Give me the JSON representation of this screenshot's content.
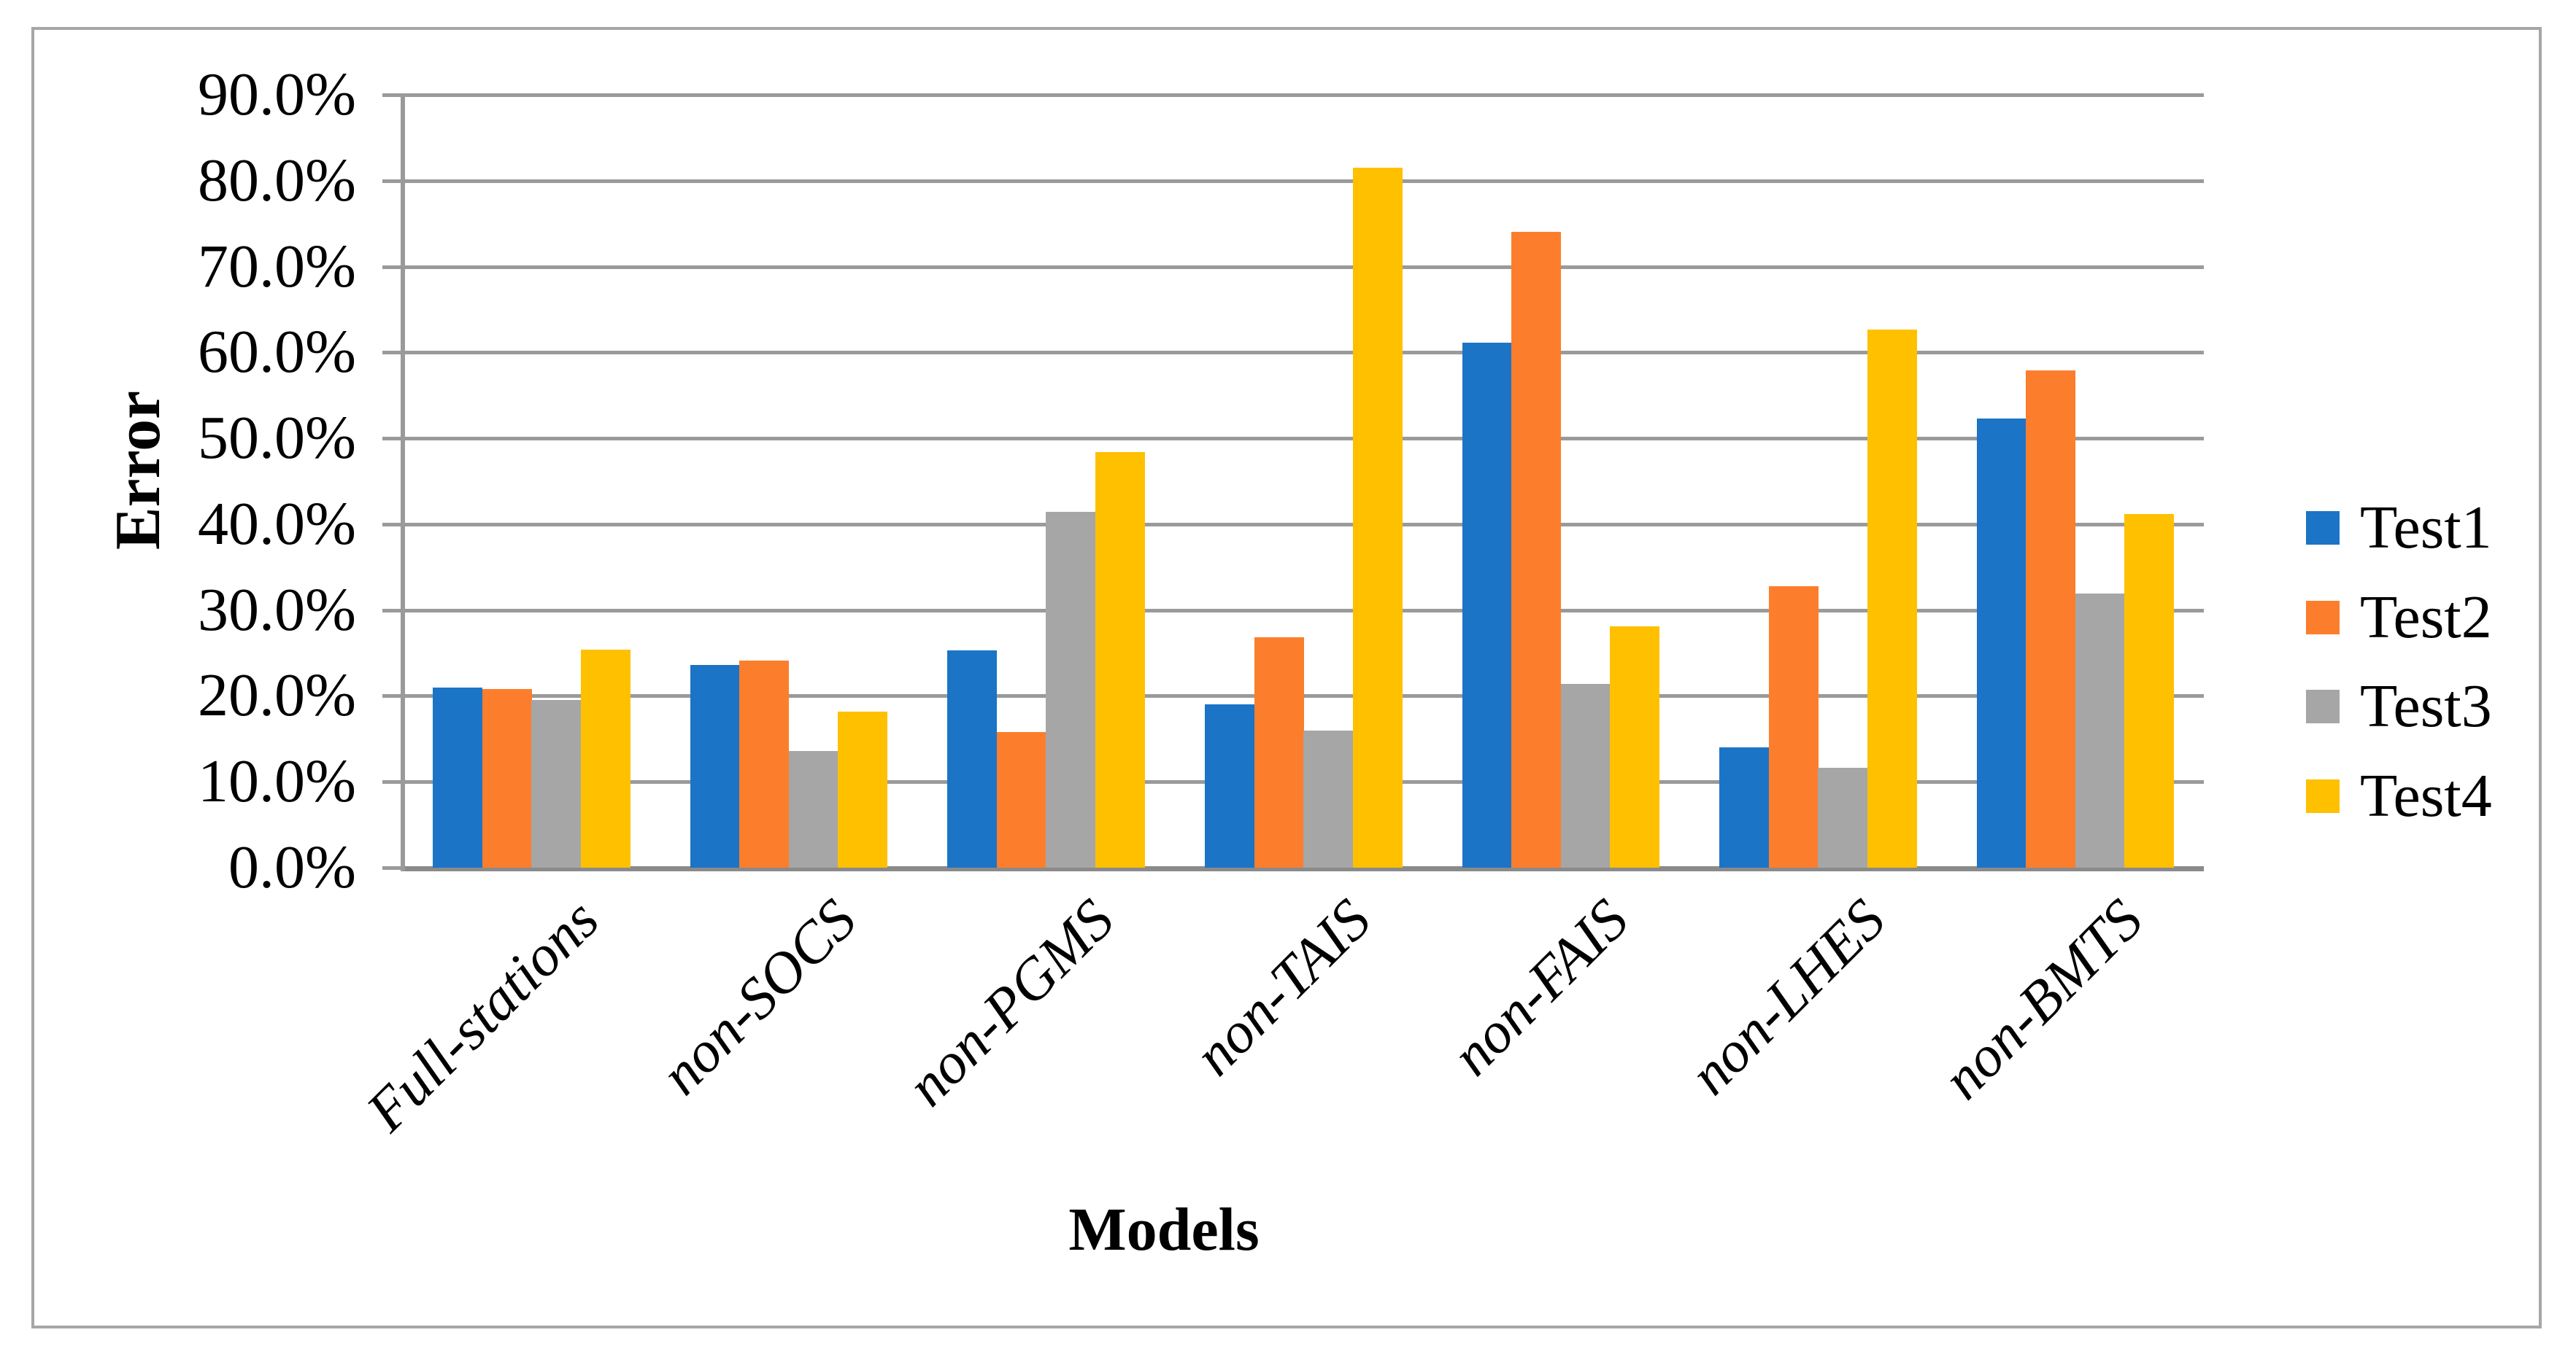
{
  "chart_data": {
    "type": "bar",
    "title": "",
    "xlabel": "Models",
    "ylabel": "Error",
    "ylim": [
      0,
      90
    ],
    "grid": "horizontal",
    "legend_position": "right",
    "y_tick_labels": [
      "90.0%",
      "80.0%",
      "70.0%",
      "60.0%",
      "50.0%",
      "40.0%",
      "30.0%",
      "20.0%",
      "10.0%",
      "0.0%"
    ],
    "categories": [
      "Full-stations",
      "non-SOCS",
      "non-PGMS",
      "non-TAIS",
      "non-FAIS",
      "non-LHES",
      "non-BMTS"
    ],
    "series": [
      {
        "name": "Test1",
        "color": "#1b74c6",
        "values": [
          21.0,
          23.6,
          25.3,
          19.0,
          61.1,
          14.0,
          52.3
        ]
      },
      {
        "name": "Test2",
        "color": "#fc7e2c",
        "values": [
          20.8,
          24.1,
          15.8,
          26.8,
          74.0,
          32.8,
          57.9
        ]
      },
      {
        "name": "Test3",
        "color": "#a6a6a6",
        "values": [
          19.5,
          13.6,
          41.4,
          16.0,
          21.4,
          11.6,
          31.9
        ]
      },
      {
        "name": "Test4",
        "color": "#ffc000",
        "values": [
          25.4,
          18.2,
          48.4,
          81.5,
          28.1,
          62.7,
          41.2
        ]
      }
    ],
    "value_unit": "percent"
  },
  "colors": {
    "gridline": "#9a9a9a",
    "axis_line": "#9a9a9a",
    "baseline": "#8a8a8a",
    "frame_border": "#a6a6a6",
    "background": "#ffffff",
    "text": "#000000"
  },
  "axis_titles": {
    "y": "Error",
    "x": "Models"
  }
}
